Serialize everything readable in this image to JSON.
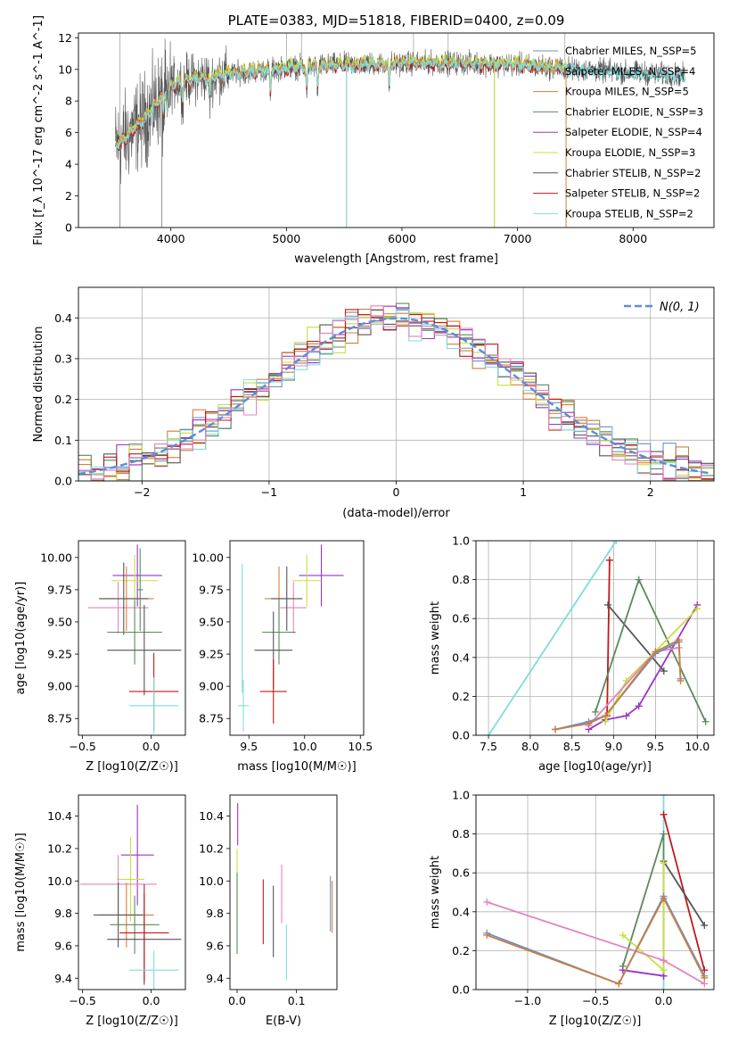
{
  "colors": {
    "chabrier_miles": "#6a8fd6",
    "salpeter_miles": "#e07d38",
    "kroupa_miles": "#c9803f",
    "chabrier_elodie": "#5a8a5a",
    "salpeter_elodie": "#9a33c4",
    "kroupa_elodie": "#c8e040",
    "chabrier_stelib": "#555555",
    "salpeter_stelib": "#c0181a",
    "kroupa_stelib": "#80dcdc",
    "pink": "#e383bf",
    "normal_curve": "#5b8ed8"
  },
  "chart_data": [
    {
      "id": "spectrum",
      "type": "line",
      "title": "PLATE=0383, MJD=51818, FIBERID=0400, z=0.09",
      "xlabel": "wavelength [Angstrom, rest frame]",
      "ylabel": "Flux [f_λ 10^-17 erg cm^-2 s^-1 A^-1]",
      "xlim": [
        3200,
        8700
      ],
      "ylim": [
        0,
        12.3
      ],
      "xticks": [
        4000,
        5000,
        6000,
        7000,
        8000
      ],
      "yticks": [
        0,
        2,
        4,
        6,
        8,
        10,
        12
      ],
      "legend_position": "top-right",
      "legend": [
        {
          "text": "Chabrier MILES, N_SSP=5",
          "color_key": "chabrier_miles"
        },
        {
          "text": "Salpeter MILES, N_SSP=4",
          "color_key": "salpeter_miles"
        },
        {
          "text": "Kroupa MILES, N_SSP=5",
          "color_key": "kroupa_miles"
        },
        {
          "text": "Chabrier ELODIE, N_SSP=3",
          "color_key": "chabrier_elodie"
        },
        {
          "text": "Salpeter ELODIE, N_SSP=4",
          "color_key": "salpeter_elodie"
        },
        {
          "text": "Kroupa ELODIE, N_SSP=3",
          "color_key": "kroupa_elodie"
        },
        {
          "text": "Chabrier STELIB, N_SSP=2",
          "color_key": "chabrier_stelib"
        },
        {
          "text": "Salpeter STELIB, N_SSP=2",
          "color_key": "salpeter_stelib"
        },
        {
          "text": "Kroupa STELIB, N_SSP=2",
          "color_key": "kroupa_stelib"
        }
      ],
      "continuum": [
        [
          3530,
          5.2
        ],
        [
          3600,
          5.6
        ],
        [
          3700,
          6.4
        ],
        [
          3800,
          7.1
        ],
        [
          3900,
          8.1
        ],
        [
          4000,
          9.0
        ],
        [
          4100,
          9.3
        ],
        [
          4300,
          9.5
        ],
        [
          4600,
          9.8
        ],
        [
          5000,
          10.1
        ],
        [
          5500,
          10.3
        ],
        [
          6000,
          10.4
        ],
        [
          6500,
          10.4
        ],
        [
          7000,
          10.3
        ],
        [
          7500,
          10.0
        ],
        [
          8000,
          9.8
        ],
        [
          8450,
          9.6
        ]
      ],
      "model_series": [
        {
          "color_key": "salpeter_stelib",
          "xrange": [
            3520,
            7420
          ],
          "offset": -0.1
        },
        {
          "color_key": "kroupa_elodie",
          "xrange": [
            3540,
            7420
          ],
          "offset": 0.15
        },
        {
          "color_key": "salpeter_miles",
          "xrange": [
            3540,
            7420
          ],
          "offset": 0.0
        },
        {
          "color_key": "kroupa_stelib",
          "xrange": [
            3520,
            8450
          ],
          "offset": -0.05
        }
      ],
      "observed_color_key": "chabrier_stelib",
      "spikes_down": [
        3560,
        3920,
        5520,
        6800
      ],
      "spikes_up": [
        3560,
        5000,
        5130,
        6100,
        6400,
        7410
      ]
    },
    {
      "id": "residuals",
      "type": "histogram",
      "xlabel": "(data-model)/error",
      "ylabel": "Normed distribution",
      "xlim": [
        -2.5,
        2.5
      ],
      "ylim": [
        0,
        0.475
      ],
      "xticks": [
        -2,
        -1,
        0,
        1,
        2
      ],
      "yticks": [
        0.0,
        0.1,
        0.2,
        0.3,
        0.4
      ],
      "grid": true,
      "legend_position": "top-right",
      "legend": [
        {
          "text": "N(0, 1)",
          "color_key": "normal_curve"
        }
      ],
      "bin_width": 0.1,
      "series_color_keys": [
        "chabrier_miles",
        "salpeter_miles",
        "kroupa_miles",
        "chabrier_elodie",
        "salpeter_elodie",
        "kroupa_elodie",
        "chabrier_stelib",
        "salpeter_stelib",
        "kroupa_stelib",
        "pink"
      ]
    },
    {
      "id": "age_vs_z",
      "type": "errorbar",
      "xlabel": "Z [log10(Z/Z☉)]",
      "ylabel": "age [log10(age/yr)]",
      "xlim": [
        -0.53,
        0.25
      ],
      "ylim": [
        8.62,
        10.13
      ],
      "xticks": [
        -0.5,
        0.0
      ],
      "yticks": [
        8.75,
        9.0,
        9.25,
        9.5,
        9.75,
        10.0
      ],
      "points": [
        {
          "c": "salpeter_elodie",
          "x": -0.1,
          "xe": 0.18,
          "y": 9.86,
          "ye": 0.24
        },
        {
          "c": "kroupa_elodie",
          "x": -0.12,
          "xe": 0.17,
          "y": 9.82,
          "ye": 0.2
        },
        {
          "c": "pink",
          "x": -0.24,
          "xe": 0.22,
          "y": 9.61,
          "ye": 0.2
        },
        {
          "c": "salpeter_miles",
          "x": -0.18,
          "xe": 0.2,
          "y": 9.68,
          "ye": 0.25
        },
        {
          "c": "chabrier_stelib",
          "x": -0.2,
          "xe": 0.18,
          "y": 9.68,
          "ye": 0.28
        },
        {
          "c": "chabrier_elodie",
          "x": -0.12,
          "xe": 0.2,
          "y": 9.42,
          "ye": 0.25
        },
        {
          "c": "chabrier_stelib",
          "x": -0.05,
          "xe": 0.27,
          "y": 9.28,
          "ye": 0.35
        },
        {
          "c": "salpeter_stelib",
          "x": 0.02,
          "xe": 0.18,
          "y": 8.96,
          "ye": 0.3
        },
        {
          "c": "kroupa_stelib",
          "x": 0.02,
          "xe": 0.18,
          "y": 8.85,
          "ye": 0.22
        },
        {
          "c": "chabrier_elodie",
          "x": -0.08,
          "xe": 0.02,
          "y": 9.75,
          "ye": 0.32
        }
      ]
    },
    {
      "id": "age_vs_mass",
      "type": "errorbar",
      "xlabel": "mass [log10(M/M☉)]",
      "ylabel": "",
      "xlim": [
        9.33,
        10.53
      ],
      "ylim": [
        8.62,
        10.13
      ],
      "xticks": [
        9.5,
        10.0,
        10.5
      ],
      "yticks": [
        8.75,
        9.0,
        9.25,
        9.5,
        9.75,
        10.0
      ],
      "points": [
        {
          "c": "salpeter_elodie",
          "x": 10.15,
          "xe": 0.2,
          "y": 9.86,
          "ye": 0.24
        },
        {
          "c": "kroupa_elodie",
          "x": 10.02,
          "xe": 0.13,
          "y": 9.82,
          "ye": 0.2
        },
        {
          "c": "pink",
          "x": 9.9,
          "xe": 0.12,
          "y": 9.61,
          "ye": 0.2
        },
        {
          "c": "salpeter_miles",
          "x": 9.77,
          "xe": 0.13,
          "y": 9.68,
          "ye": 0.25
        },
        {
          "c": "chabrier_stelib",
          "x": 9.84,
          "xe": 0.14,
          "y": 9.68,
          "ye": 0.25
        },
        {
          "c": "chabrier_elodie",
          "x": 9.77,
          "xe": 0.15,
          "y": 9.42,
          "ye": 0.25
        },
        {
          "c": "chabrier_stelib",
          "x": 9.72,
          "xe": 0.17,
          "y": 9.28,
          "ye": 0.3
        },
        {
          "c": "salpeter_stelib",
          "x": 9.72,
          "xe": 0.12,
          "y": 8.96,
          "ye": 0.25
        },
        {
          "c": "kroupa_stelib",
          "x": 9.45,
          "xe": 0.05,
          "y": 8.85,
          "ye": 0.2
        },
        {
          "c": "kroupa_stelib",
          "x": 9.44,
          "xe": 0.0,
          "y": 9.45,
          "ye": 0.5
        }
      ]
    },
    {
      "id": "weight_vs_age",
      "type": "line",
      "xlabel": "age [log10(age/yr)]",
      "ylabel": "mass weight",
      "xlim": [
        7.35,
        10.2
      ],
      "ylim": [
        0,
        1.0
      ],
      "xticks": [
        7.5,
        8.0,
        8.5,
        9.0,
        9.5,
        10.0
      ],
      "yticks": [
        0.0,
        0.2,
        0.4,
        0.6,
        0.8,
        1.0
      ],
      "grid": true,
      "series": [
        {
          "c": "kroupa_stelib",
          "x": [
            7.5,
            9.03
          ],
          "y": [
            0.0,
            1.0
          ]
        },
        {
          "c": "salpeter_stelib",
          "x": [
            8.92,
            8.95
          ],
          "y": [
            0.1,
            0.9
          ]
        },
        {
          "c": "chabrier_stelib",
          "x": [
            8.93,
            9.6
          ],
          "y": [
            0.67,
            0.33
          ]
        },
        {
          "c": "chabrier_elodie",
          "x": [
            8.78,
            9.3,
            10.1
          ],
          "y": [
            0.12,
            0.8,
            0.07
          ]
        },
        {
          "c": "salpeter_elodie",
          "x": [
            8.7,
            8.9,
            9.15,
            9.3,
            10.0
          ],
          "y": [
            0.03,
            0.08,
            0.1,
            0.15,
            0.67
          ]
        },
        {
          "c": "kroupa_elodie",
          "x": [
            8.9,
            9.15,
            10.0
          ],
          "y": [
            0.07,
            0.28,
            0.65
          ]
        },
        {
          "c": "pink",
          "x": [
            8.7,
            9.5,
            9.78
          ],
          "y": [
            0.05,
            0.43,
            0.45
          ]
        },
        {
          "c": "chabrier_miles",
          "x": [
            8.3,
            8.7,
            8.9,
            9.5,
            9.78,
            9.8
          ],
          "y": [
            0.03,
            0.07,
            0.1,
            0.42,
            0.48,
            0.29
          ]
        },
        {
          "c": "kroupa_miles",
          "x": [
            8.3,
            8.7,
            8.9,
            9.5,
            9.78,
            9.8
          ],
          "y": [
            0.03,
            0.06,
            0.1,
            0.43,
            0.49,
            0.28
          ]
        }
      ]
    },
    {
      "id": "mass_vs_z",
      "type": "errorbar",
      "xlabel": "Z [log10(Z/Z☉)]",
      "ylabel": "mass [log10(M/M☉)]",
      "xlim": [
        -0.53,
        0.25
      ],
      "ylim": [
        9.33,
        10.53
      ],
      "xticks": [
        -0.5,
        0.0
      ],
      "yticks": [
        9.4,
        9.6,
        9.8,
        10.0,
        10.2,
        10.4
      ],
      "points": [
        {
          "c": "salpeter_elodie",
          "x": -0.1,
          "xe": 0.12,
          "y": 10.16,
          "ye": 0.31
        },
        {
          "c": "kroupa_elodie",
          "x": -0.15,
          "xe": 0.1,
          "y": 10.01,
          "ye": 0.26
        },
        {
          "c": "pink",
          "x": -0.24,
          "xe": 0.28,
          "y": 9.98,
          "ye": 0.18
        },
        {
          "c": "salpeter_miles",
          "x": -0.18,
          "xe": 0.2,
          "y": 9.79,
          "ye": 0.2
        },
        {
          "c": "chabrier_stelib",
          "x": -0.24,
          "xe": 0.18,
          "y": 9.79,
          "ye": 0.2
        },
        {
          "c": "chabrier_elodie",
          "x": -0.12,
          "xe": 0.18,
          "y": 9.73,
          "ye": 0.18
        },
        {
          "c": "chabrier_stelib",
          "x": -0.05,
          "xe": 0.27,
          "y": 9.64,
          "ye": 0.28
        },
        {
          "c": "salpeter_stelib",
          "x": -0.05,
          "xe": 0.18,
          "y": 9.68,
          "ye": 0.3
        },
        {
          "c": "kroupa_stelib",
          "x": 0.02,
          "xe": 0.18,
          "y": 9.45,
          "ye": 0.12
        }
      ]
    },
    {
      "id": "mass_vs_ebv",
      "type": "errorbar",
      "xlabel": "E(B-V)",
      "ylabel": "",
      "xlim": [
        -0.012,
        0.168
      ],
      "ylim": [
        9.33,
        10.53
      ],
      "xticks": [
        0.0,
        0.1
      ],
      "yticks": [
        9.4,
        9.6,
        9.8,
        10.0,
        10.2,
        10.4
      ],
      "points": [
        {
          "c": "salpeter_elodie",
          "x": 0.001,
          "xe": 0,
          "y": 10.35,
          "ye": 0.13
        },
        {
          "c": "kroupa_elodie",
          "x": 0.0,
          "xe": 0,
          "y": 10.0,
          "ye": 0.2
        },
        {
          "c": "chabrier_elodie",
          "x": 0.0,
          "xe": 0,
          "y": 9.8,
          "ye": 0.25
        },
        {
          "c": "salpeter_stelib",
          "x": 0.044,
          "xe": 0,
          "y": 9.81,
          "ye": 0.2
        },
        {
          "c": "chabrier_stelib",
          "x": 0.061,
          "xe": 0,
          "y": 9.75,
          "ye": 0.22
        },
        {
          "c": "pink",
          "x": 0.075,
          "xe": 0,
          "y": 9.92,
          "ye": 0.18
        },
        {
          "c": "kroupa_stelib",
          "x": 0.083,
          "xe": 0,
          "y": 9.56,
          "ye": 0.17
        },
        {
          "c": "chabrier_miles",
          "x": 0.157,
          "xe": 0,
          "y": 9.86,
          "ye": 0.17
        },
        {
          "c": "salpeter_miles",
          "x": 0.16,
          "xe": 0,
          "y": 9.84,
          "ye": 0.16
        }
      ]
    },
    {
      "id": "weight_vs_z",
      "type": "line",
      "xlabel": "Z [log10(Z/Z☉)]",
      "ylabel": "mass weight",
      "xlim": [
        -1.38,
        0.37
      ],
      "ylim": [
        0,
        1.0
      ],
      "xticks": [
        -1.0,
        -0.5,
        0.0
      ],
      "yticks": [
        0.0,
        0.2,
        0.4,
        0.6,
        0.8,
        1.0
      ],
      "grid": true,
      "series": [
        {
          "c": "kroupa_stelib",
          "x": [
            0.0,
            0.0
          ],
          "y": [
            0.0,
            1.0
          ]
        },
        {
          "c": "salpeter_stelib",
          "x": [
            0.0,
            0.3
          ],
          "y": [
            0.9,
            0.1
          ]
        },
        {
          "c": "chabrier_stelib",
          "x": [
            0.0,
            0.3
          ],
          "y": [
            0.66,
            0.33
          ]
        },
        {
          "c": "chabrier_elodie",
          "x": [
            -0.3,
            0.0,
            0.0
          ],
          "y": [
            0.12,
            0.8,
            0.07
          ]
        },
        {
          "c": "salpeter_elodie",
          "x": [
            -0.3,
            0.0
          ],
          "y": [
            0.1,
            0.07
          ]
        },
        {
          "c": "kroupa_elodie",
          "x": [
            -0.3,
            0.0,
            0.0
          ],
          "y": [
            0.28,
            0.1,
            0.65
          ]
        },
        {
          "c": "pink",
          "x": [
            -1.3,
            0.0,
            0.3
          ],
          "y": [
            0.45,
            0.15,
            0.03
          ]
        },
        {
          "c": "chabrier_miles",
          "x": [
            -1.3,
            -0.33,
            0.0,
            0.3
          ],
          "y": [
            0.29,
            0.03,
            0.48,
            0.07
          ]
        },
        {
          "c": "kroupa_miles",
          "x": [
            -1.3,
            -0.33,
            0.0,
            0.3
          ],
          "y": [
            0.28,
            0.03,
            0.47,
            0.06
          ]
        }
      ]
    }
  ]
}
